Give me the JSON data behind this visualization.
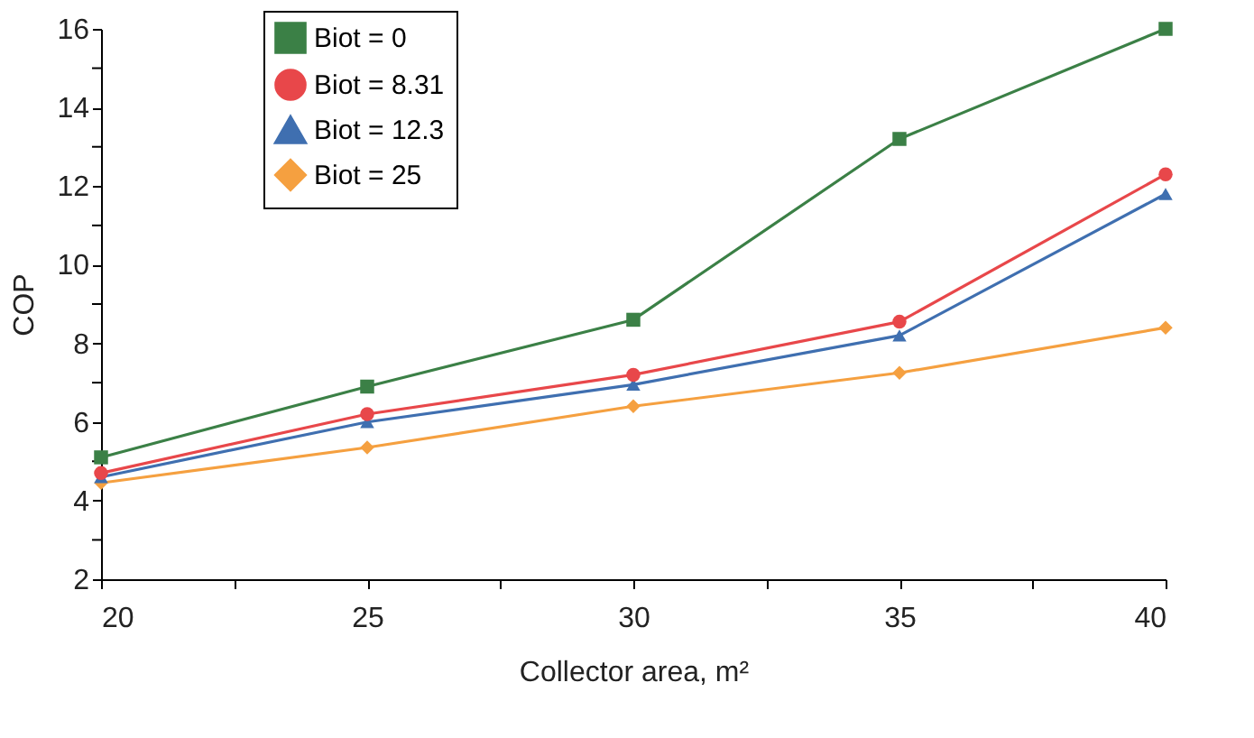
{
  "chart_data": {
    "type": "line",
    "xlabel": "Collector area, m²",
    "ylabel": "COP",
    "x": [
      20,
      25,
      30,
      35,
      40
    ],
    "series": [
      {
        "name": "Biot = 0",
        "color": "#3b8046",
        "marker": "square",
        "values": [
          5.1,
          6.9,
          8.6,
          13.2,
          16.0
        ]
      },
      {
        "name": "Biot = 8.31",
        "color": "#e8474a",
        "marker": "circle",
        "values": [
          4.7,
          6.2,
          7.2,
          8.55,
          12.3
        ]
      },
      {
        "name": "Biot = 12.3",
        "color": "#3f6fb0",
        "marker": "triangle",
        "values": [
          4.6,
          6.0,
          6.95,
          8.2,
          11.8
        ]
      },
      {
        "name": "Biot = 25",
        "color": "#f5a040",
        "marker": "diamond",
        "values": [
          4.45,
          5.35,
          6.4,
          7.25,
          8.4
        ]
      }
    ],
    "xlim": [
      20,
      40
    ],
    "xticks": [
      20,
      {
        "value": 22.5,
        "label": null
      },
      25,
      {
        "value": 27.5,
        "label": null
      },
      30,
      {
        "value": 32.5,
        "label": null
      },
      35,
      {
        "value": 37.5,
        "label": null
      },
      40
    ],
    "ylim": [
      2,
      16
    ],
    "yticks": [
      2,
      {
        "value": 3,
        "label": null
      },
      4,
      {
        "value": 5,
        "label": null
      },
      6,
      {
        "value": 7,
        "label": null
      },
      8,
      {
        "value": 9,
        "label": null
      },
      10,
      {
        "value": 11,
        "label": null
      },
      12,
      {
        "value": 13,
        "label": null
      },
      14,
      {
        "value": 15,
        "label": null
      },
      16
    ],
    "grid": false,
    "legend": "top left",
    "line_style": "solid"
  }
}
